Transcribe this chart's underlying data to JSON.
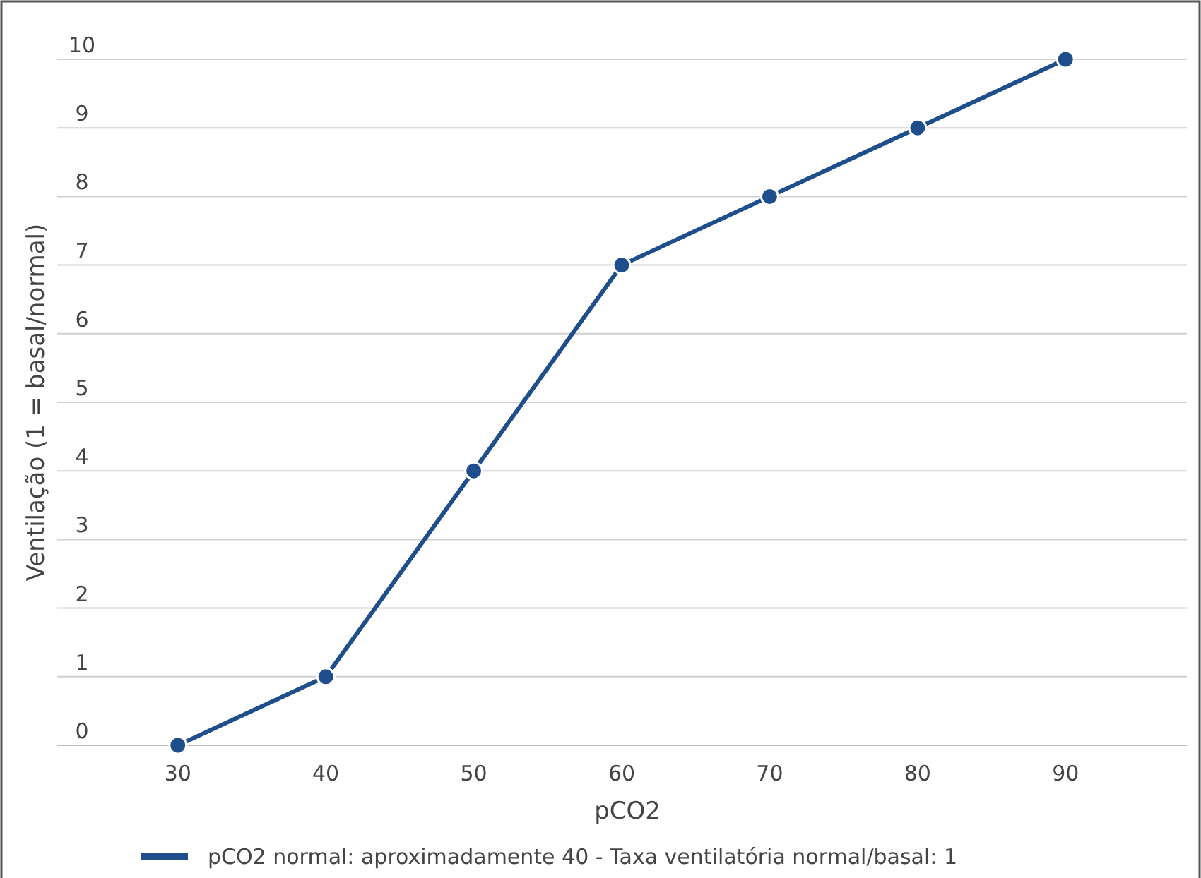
{
  "chart_data": {
    "type": "line",
    "xlabel": "pCO2",
    "ylabel": "Ventilação (1 = basal/normal)",
    "categories": [
      "30",
      "40",
      "50",
      "60",
      "70",
      "80",
      "90"
    ],
    "series": [
      {
        "name": "pCO2 normal: aproximadamente 40 - Taxa ventilatória normal/basal: 1",
        "color": "#1f4e8c",
        "values": [
          0,
          1,
          4,
          7,
          8,
          9,
          10
        ]
      }
    ],
    "ylim": [
      0,
      10
    ],
    "yticks": [
      0,
      1,
      2,
      3,
      4,
      5,
      6,
      7,
      8,
      9,
      10
    ],
    "grid": "y",
    "legend": "bottom",
    "marker": "circle",
    "line_style": "solid"
  }
}
